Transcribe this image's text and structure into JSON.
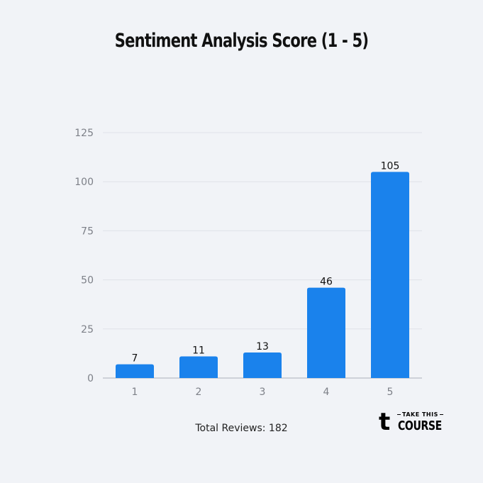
{
  "title": "Sentiment Analysis Score (1 - 5)",
  "footer_text": "Total Reviews: 182",
  "logo": {
    "glyph": "t",
    "line1": "TAKE THIS",
    "line2": "COURSE"
  },
  "colors": {
    "bar": "#1a82ec",
    "grid": "#dfe2e8",
    "axis": "#b9bdc6",
    "tick_text": "#7d8088",
    "label_text": "#111111",
    "background": "#f1f3f7"
  },
  "chart_data": {
    "type": "bar",
    "title": "Sentiment Analysis Score (1 - 5)",
    "xlabel": "",
    "ylabel": "",
    "categories": [
      "1",
      "2",
      "3",
      "4",
      "5"
    ],
    "values": [
      7,
      11,
      13,
      46,
      105
    ],
    "data_labels": [
      "7",
      "11",
      "13",
      "46",
      "105"
    ],
    "ylim": [
      0,
      125
    ],
    "yticks": [
      0,
      25,
      50,
      75,
      100,
      125
    ],
    "grid": true,
    "legend": "none"
  }
}
